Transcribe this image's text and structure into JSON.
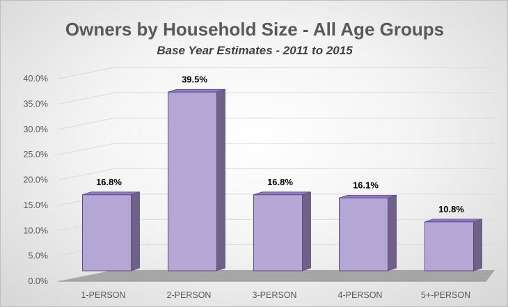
{
  "chart_data": {
    "type": "bar",
    "title": "Owners by Household Size - All Age Groups",
    "subtitle": "Base Year Estimates - 2011 to 2015",
    "categories": [
      "1-PERSON",
      "2-PERSON",
      "3-PERSON",
      "4-PERSON",
      "5+-PERSON"
    ],
    "values": [
      16.8,
      39.5,
      16.8,
      16.1,
      10.8
    ],
    "data_labels": [
      "16.8%",
      "39.5%",
      "16.8%",
      "16.1%",
      "10.8%"
    ],
    "y_ticks": [
      "0.0%",
      "5.0%",
      "10.0%",
      "15.0%",
      "20.0%",
      "25.0%",
      "30.0%",
      "35.0%",
      "40.0%"
    ],
    "ylim": [
      0,
      40
    ],
    "xlabel": "",
    "ylabel": "",
    "grid": true,
    "legend": "none",
    "style": "3d-column",
    "colors": {
      "bar_front": "#b4a7d6",
      "bar_side": "#6f6188",
      "bar_top": "#8e7cc3",
      "bar_outline": "#5b4a80",
      "floor": "#a6a6a6",
      "grid": "#d9d9d9"
    }
  }
}
